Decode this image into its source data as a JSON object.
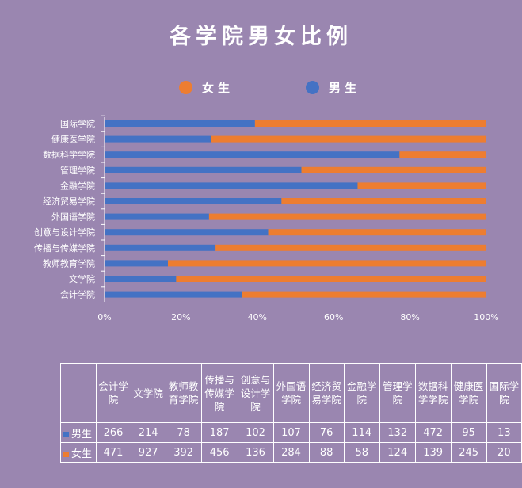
{
  "chart_data": {
    "type": "bar",
    "orientation": "horizontal",
    "stacked": "percent",
    "title": "各学院男女比例",
    "categories": [
      "国际学院",
      "健康医学院",
      "数据科学学院",
      "管理学院",
      "金融学院",
      "经济贸易学院",
      "外国语学院",
      "创意与设计学院",
      "传播与传媒学院",
      "教师教育学院",
      "文学院",
      "会计学院"
    ],
    "series": [
      {
        "name": "男生",
        "values": [
          13,
          95,
          472,
          132,
          114,
          76,
          107,
          102,
          187,
          78,
          214,
          266
        ]
      },
      {
        "name": "女生",
        "values": [
          20,
          245,
          139,
          124,
          58,
          88,
          284,
          136,
          456,
          392,
          927,
          471
        ]
      }
    ],
    "xlim": [
      0,
      1
    ],
    "x_ticks": [
      "0%",
      "20%",
      "40%",
      "60%",
      "80%",
      "100%"
    ],
    "legend_position": "top",
    "legend_order": [
      "女生",
      "男生"
    ],
    "colors": {
      "男生": "#4472c4",
      "女生": "#ed7d31"
    },
    "grid": false
  },
  "table": {
    "headers": [
      [
        "会计学",
        "院"
      ],
      [
        "文学院"
      ],
      [
        "教师教",
        "育学院"
      ],
      [
        "传播与",
        "传媒学",
        "院"
      ],
      [
        "创意与",
        "设计学",
        "院"
      ],
      [
        "外国语",
        "学院"
      ],
      [
        "经济贸",
        "易学院"
      ],
      [
        "金融学",
        "院"
      ],
      [
        "管理学",
        "院"
      ],
      [
        "数据科",
        "学学院"
      ],
      [
        "健康医",
        "学院"
      ],
      [
        "国际学",
        "院"
      ]
    ],
    "rows": [
      {
        "label": "男生",
        "values": [
          "266",
          "214",
          "78",
          "187",
          "102",
          "107",
          "76",
          "114",
          "132",
          "472",
          "95",
          "13"
        ]
      },
      {
        "label": "女生",
        "values": [
          "471",
          "927",
          "392",
          "456",
          "136",
          "284",
          "88",
          "58",
          "124",
          "139",
          "245",
          "20"
        ]
      }
    ]
  }
}
